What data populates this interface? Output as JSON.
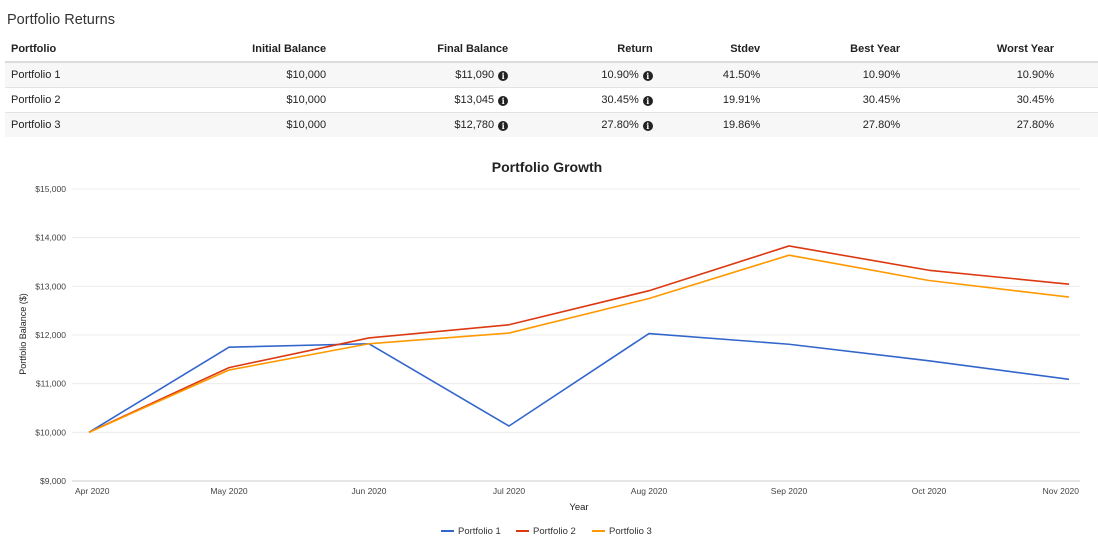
{
  "table": {
    "title": "Portfolio Returns",
    "columns": [
      "Portfolio",
      "Initial Balance",
      "Final Balance",
      "Return",
      "Stdev",
      "Best Year",
      "Worst Year"
    ],
    "rows": [
      {
        "name": "Portfolio 1",
        "initial": "$10,000",
        "final": "$11,090",
        "return": "10.90%",
        "stdev": "41.50%",
        "best": "10.90%",
        "worst": "10.90%"
      },
      {
        "name": "Portfolio 2",
        "initial": "$10,000",
        "final": "$13,045",
        "return": "30.45%",
        "stdev": "19.91%",
        "best": "30.45%",
        "worst": "30.45%"
      },
      {
        "name": "Portfolio 3",
        "initial": "$10,000",
        "final": "$12,780",
        "return": "27.80%",
        "stdev": "19.86%",
        "best": "27.80%",
        "worst": "27.80%"
      }
    ],
    "info_icon": "info-circle-icon"
  },
  "chart_data": {
    "type": "line",
    "title": "Portfolio Growth",
    "xlabel": "Year",
    "ylabel": "Portfolio Balance ($)",
    "x": [
      "Apr 2020",
      "May 2020",
      "Jun 2020",
      "Jul 2020",
      "Aug 2020",
      "Sep 2020",
      "Oct 2020",
      "Nov 2020"
    ],
    "ylim": [
      9000,
      15000
    ],
    "yticks": [
      9000,
      10000,
      11000,
      12000,
      13000,
      14000,
      15000
    ],
    "ytick_labels": [
      "$9,000",
      "$10,000",
      "$11,000",
      "$12,000",
      "$13,000",
      "$14,000",
      "$15,000"
    ],
    "grid": true,
    "legend_position": "bottom",
    "series": [
      {
        "name": "Portfolio 1",
        "color": "#3366cc",
        "values": [
          10000,
          11750,
          11820,
          10130,
          12030,
          11810,
          11470,
          11090
        ]
      },
      {
        "name": "Portfolio 2",
        "color": "#dc3912",
        "values": [
          10000,
          11330,
          11940,
          12210,
          12910,
          13830,
          13330,
          13045
        ]
      },
      {
        "name": "Portfolio 3",
        "color": "#ff9900",
        "values": [
          10000,
          11280,
          11820,
          12040,
          12750,
          13640,
          13120,
          12780
        ]
      }
    ]
  }
}
